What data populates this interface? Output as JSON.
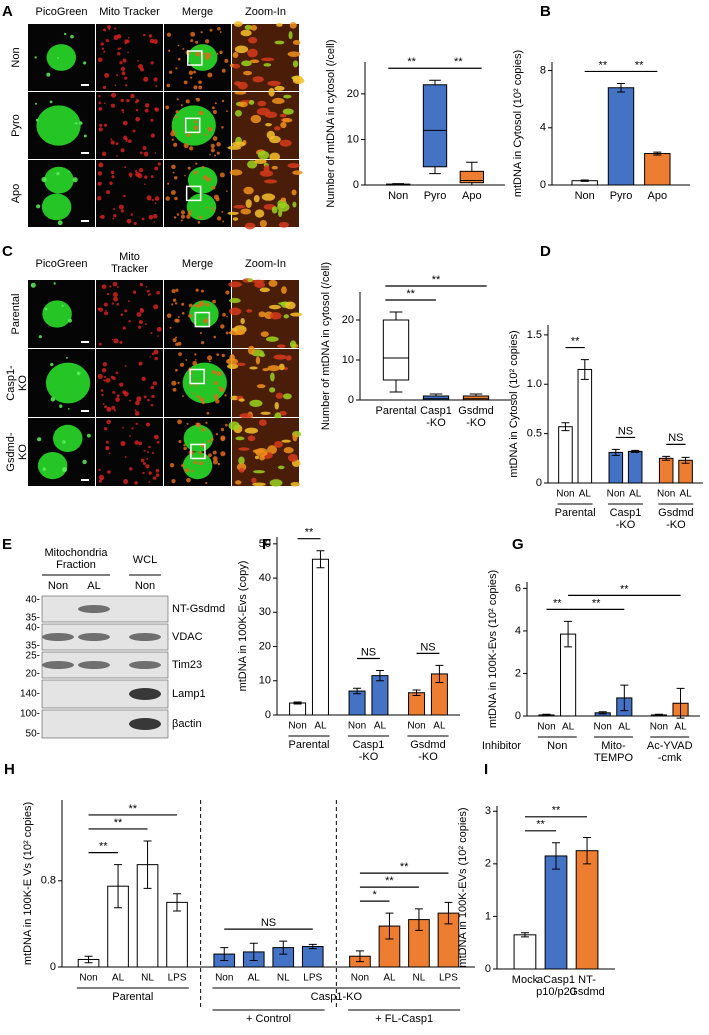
{
  "figure": {
    "imaging": [
      {
        "panel": "A",
        "columns": [
          "PicoGreen",
          "Mito Tracker",
          "Merge",
          "Zoom-In"
        ],
        "rows": [
          "Non",
          "Pyro",
          "Apo"
        ]
      },
      {
        "panel": "C",
        "columns": [
          "PicoGreen",
          "Mito\nTracker",
          "Merge",
          "Zoom-In"
        ],
        "rows": [
          "Parental",
          "Casp1-\nKO",
          "Gsdmd-\nKO"
        ]
      }
    ],
    "blot": {
      "panel": "E",
      "fractions": [
        {
          "label": "Mitochondria\nFraction",
          "lanes": [
            0,
            1
          ]
        },
        {
          "label": "WCL",
          "lanes": [
            2,
            2
          ]
        }
      ],
      "lanes": [
        "Non",
        "AL",
        "Non"
      ],
      "rows": [
        {
          "label": "NT-Gsdmd",
          "markers": [
            "40-",
            "35-"
          ]
        },
        {
          "label": "VDAC",
          "markers": [
            "40-",
            "35-"
          ]
        },
        {
          "label": "Tim23",
          "markers": [
            "25-",
            "20-"
          ]
        },
        {
          "label": "Lamp1",
          "markers": [
            "140-"
          ]
        },
        {
          "label": "βactin",
          "markers": [
            "100-",
            "50-"
          ]
        }
      ]
    }
  },
  "chart_data": [
    {
      "type": "box",
      "ylabel": "Number of mtDNA in cytosol (/cell)",
      "categories": [
        "Non",
        "Pyro",
        "Apo"
      ],
      "colors": [
        "#ffffff",
        "#4472c4",
        "#ed7d31"
      ],
      "boxes": [
        {
          "min": 0,
          "q1": 0,
          "median": 0.1,
          "q3": 0.2,
          "max": 0.3
        },
        {
          "min": 2.5,
          "q1": 4,
          "median": 12,
          "q3": 22,
          "max": 23
        },
        {
          "min": 0,
          "q1": 0.5,
          "median": 1,
          "q3": 3,
          "max": 5
        }
      ],
      "ylim": [
        0,
        27
      ],
      "yticks": [
        0,
        10,
        20
      ],
      "annotations": [
        {
          "text": "**",
          "between": [
            0,
            1
          ]
        },
        {
          "text": "**",
          "between": [
            1,
            2
          ]
        }
      ]
    },
    {
      "type": "bar",
      "panel": "B",
      "ylabel": "mtDNA in Cytosol (10² copies)",
      "categories": [
        "Non",
        "Pyro",
        "Apo"
      ],
      "values": [
        0.3,
        6.8,
        2.2
      ],
      "errors": [
        0.05,
        0.3,
        0.1
      ],
      "colors": [
        "#ffffff",
        "#4472c4",
        "#ed7d31"
      ],
      "ylim": [
        0,
        8.6
      ],
      "yticks": [
        0,
        4,
        8
      ],
      "annotations": [
        {
          "text": "**",
          "between": [
            0,
            1
          ]
        },
        {
          "text": "**",
          "between": [
            1,
            2
          ]
        }
      ]
    },
    {
      "type": "box",
      "ylabel": "Number of mtDNA in cytosol (/cell)",
      "categories": [
        "Parental",
        "Casp1\n-KO",
        "Gsdmd\n-KO"
      ],
      "colors": [
        "#ffffff",
        "#4472c4",
        "#ed7d31"
      ],
      "boxes": [
        {
          "min": 2,
          "q1": 5,
          "median": 10.5,
          "q3": 20,
          "max": 22
        },
        {
          "min": 0,
          "q1": 0,
          "median": 0.3,
          "q3": 1,
          "max": 1.5
        },
        {
          "min": 0,
          "q1": 0,
          "median": 0.3,
          "q3": 1,
          "max": 1.5
        }
      ],
      "ylim": [
        0,
        27
      ],
      "yticks": [
        0,
        10,
        20
      ],
      "annotations": [
        {
          "text": "**",
          "between": [
            0,
            1
          ]
        },
        {
          "text": "**",
          "between": [
            0,
            2
          ]
        }
      ]
    },
    {
      "type": "bar",
      "panel": "D",
      "ylabel": "mtDNA in Cytosol (10² copies)",
      "categories": [
        "Non",
        "AL",
        "Non",
        "AL",
        "Non",
        "AL"
      ],
      "values": [
        0.57,
        1.15,
        0.31,
        0.32,
        0.25,
        0.23
      ],
      "errors": [
        0.04,
        0.1,
        0.03,
        0.01,
        0.02,
        0.03
      ],
      "colors": [
        "#ffffff",
        "#ffffff",
        "#4472c4",
        "#4472c4",
        "#ed7d31",
        "#ed7d31"
      ],
      "groups": [
        {
          "label": "Parental",
          "bars": [
            0,
            1
          ]
        },
        {
          "label": "Casp1\n-KO",
          "bars": [
            2,
            3
          ]
        },
        {
          "label": "Gsdmd\n-KO",
          "bars": [
            4,
            5
          ]
        }
      ],
      "ylim": [
        0,
        1.6
      ],
      "yticks": [
        0,
        0.5,
        {
          "value": 1,
          "label": "1.0"
        },
        1.5
      ],
      "annotations": [
        {
          "text": "**",
          "between": [
            0,
            1
          ]
        },
        {
          "text": "NS",
          "between": [
            2,
            3
          ]
        },
        {
          "text": "NS",
          "between": [
            4,
            5
          ]
        }
      ]
    },
    {
      "type": "bar",
      "panel": "F",
      "ylabel": "mtDNA in 100K-Evs (copy)",
      "categories": [
        "Non",
        "AL",
        "Non",
        "AL",
        "Non",
        "AL"
      ],
      "values": [
        3.5,
        45.5,
        7,
        11.5,
        6.5,
        12
      ],
      "errors": [
        0.3,
        2.5,
        0.8,
        1.5,
        0.8,
        2.5
      ],
      "colors": [
        "#ffffff",
        "#ffffff",
        "#4472c4",
        "#4472c4",
        "#ed7d31",
        "#ed7d31"
      ],
      "groups": [
        {
          "label": "Parental",
          "bars": [
            0,
            1
          ]
        },
        {
          "label": "Casp1\n-KO",
          "bars": [
            2,
            3
          ]
        },
        {
          "label": "Gsdmd\n-KO",
          "bars": [
            4,
            5
          ]
        }
      ],
      "ylim": [
        0,
        52
      ],
      "yticks": [
        0,
        10,
        20,
        30,
        40,
        50
      ],
      "annotations": [
        {
          "text": "**",
          "between": [
            0,
            1
          ]
        },
        {
          "text": "NS",
          "between": [
            2,
            3
          ]
        },
        {
          "text": "NS",
          "between": [
            4,
            5
          ]
        }
      ]
    },
    {
      "type": "bar",
      "panel": "G",
      "ylabel": "mtDNA in 100K-Evs (10² copies)",
      "categories": [
        "Non",
        "AL",
        "Non",
        "AL",
        "Non",
        "AL"
      ],
      "values": [
        0.05,
        3.85,
        0.15,
        0.85,
        0.05,
        0.6
      ],
      "errors": [
        0.03,
        0.6,
        0.05,
        0.6,
        0.03,
        0.7
      ],
      "colors": [
        "#ffffff",
        "#ffffff",
        "#4472c4",
        "#4472c4",
        "#ed7d31",
        "#ed7d31"
      ],
      "group_title": "Inhibitor",
      "groups": [
        {
          "label": "Non",
          "bars": [
            0,
            1
          ]
        },
        {
          "label": "Mito-\nTEMPO",
          "bars": [
            2,
            3
          ]
        },
        {
          "label": "Ac-YVAD\n-cmk",
          "bars": [
            4,
            5
          ]
        }
      ],
      "ylim": [
        0,
        6.3
      ],
      "yticks": [
        0,
        2,
        4,
        6
      ],
      "annotations": [
        {
          "text": "**",
          "between": [
            0,
            1
          ]
        },
        {
          "text": "**",
          "between": [
            1,
            3
          ]
        },
        {
          "text": "**",
          "between": [
            1,
            5
          ]
        }
      ]
    },
    {
      "type": "bar",
      "panel": "H",
      "ylabel": "mtDNA in 100K-E Vs (10² copies)",
      "categories": [
        "Non",
        "AL",
        "NL",
        "LPS",
        "Non",
        "AL",
        "NL",
        "LPS",
        "Non",
        "AL",
        "NL",
        "LPS"
      ],
      "values": [
        0.07,
        0.75,
        0.95,
        0.6,
        0.12,
        0.14,
        0.18,
        0.19,
        0.1,
        0.38,
        0.44,
        0.5
      ],
      "errors": [
        0.03,
        0.2,
        0.22,
        0.08,
        0.06,
        0.08,
        0.06,
        0.02,
        0.05,
        0.12,
        0.1,
        0.1
      ],
      "colors": [
        "#ffffff",
        "#ffffff",
        "#ffffff",
        "#ffffff",
        "#4472c4",
        "#4472c4",
        "#4472c4",
        "#4472c4",
        "#ed7d31",
        "#ed7d31",
        "#ed7d31",
        "#ed7d31"
      ],
      "groups": [
        {
          "label": "Parental",
          "bars": [
            0,
            3
          ]
        },
        {
          "label": "Casp1-KO",
          "bars": [
            4,
            11
          ]
        }
      ],
      "subgroups": [
        {
          "label": "+ Control",
          "bars": [
            4,
            7
          ]
        },
        {
          "label": "+ FL-Casp1",
          "bars": [
            8,
            11
          ]
        }
      ],
      "dashed_separators": true,
      "ylim": [
        0,
        1.55
      ],
      "yticks": [
        0,
        0.8
      ],
      "annotations": [
        {
          "text": "**",
          "between": [
            0,
            1
          ]
        },
        {
          "text": "**",
          "between": [
            0,
            2
          ]
        },
        {
          "text": "**",
          "between": [
            0,
            3
          ]
        },
        {
          "text": "NS",
          "between": [
            4,
            7
          ]
        },
        {
          "text": "*",
          "between": [
            8,
            9
          ]
        },
        {
          "text": "**",
          "between": [
            8,
            10
          ]
        },
        {
          "text": "**",
          "between": [
            8,
            11
          ]
        }
      ]
    },
    {
      "type": "bar",
      "panel": "I",
      "ylabel": "mtDNA in 100K-EVs (10² copies)",
      "categories": [
        "Mock",
        "aCasp1\np10/p20",
        "NT-\nGsdmd"
      ],
      "values": [
        0.65,
        2.15,
        2.25
      ],
      "errors": [
        0.04,
        0.25,
        0.25
      ],
      "colors": [
        "#ffffff",
        "#4472c4",
        "#ed7d31"
      ],
      "ylim": [
        0,
        3.1
      ],
      "yticks": [
        0,
        1,
        2,
        3
      ],
      "annotations": [
        {
          "text": "**",
          "between": [
            0,
            1
          ]
        },
        {
          "text": "**",
          "between": [
            0,
            2
          ]
        }
      ]
    }
  ]
}
